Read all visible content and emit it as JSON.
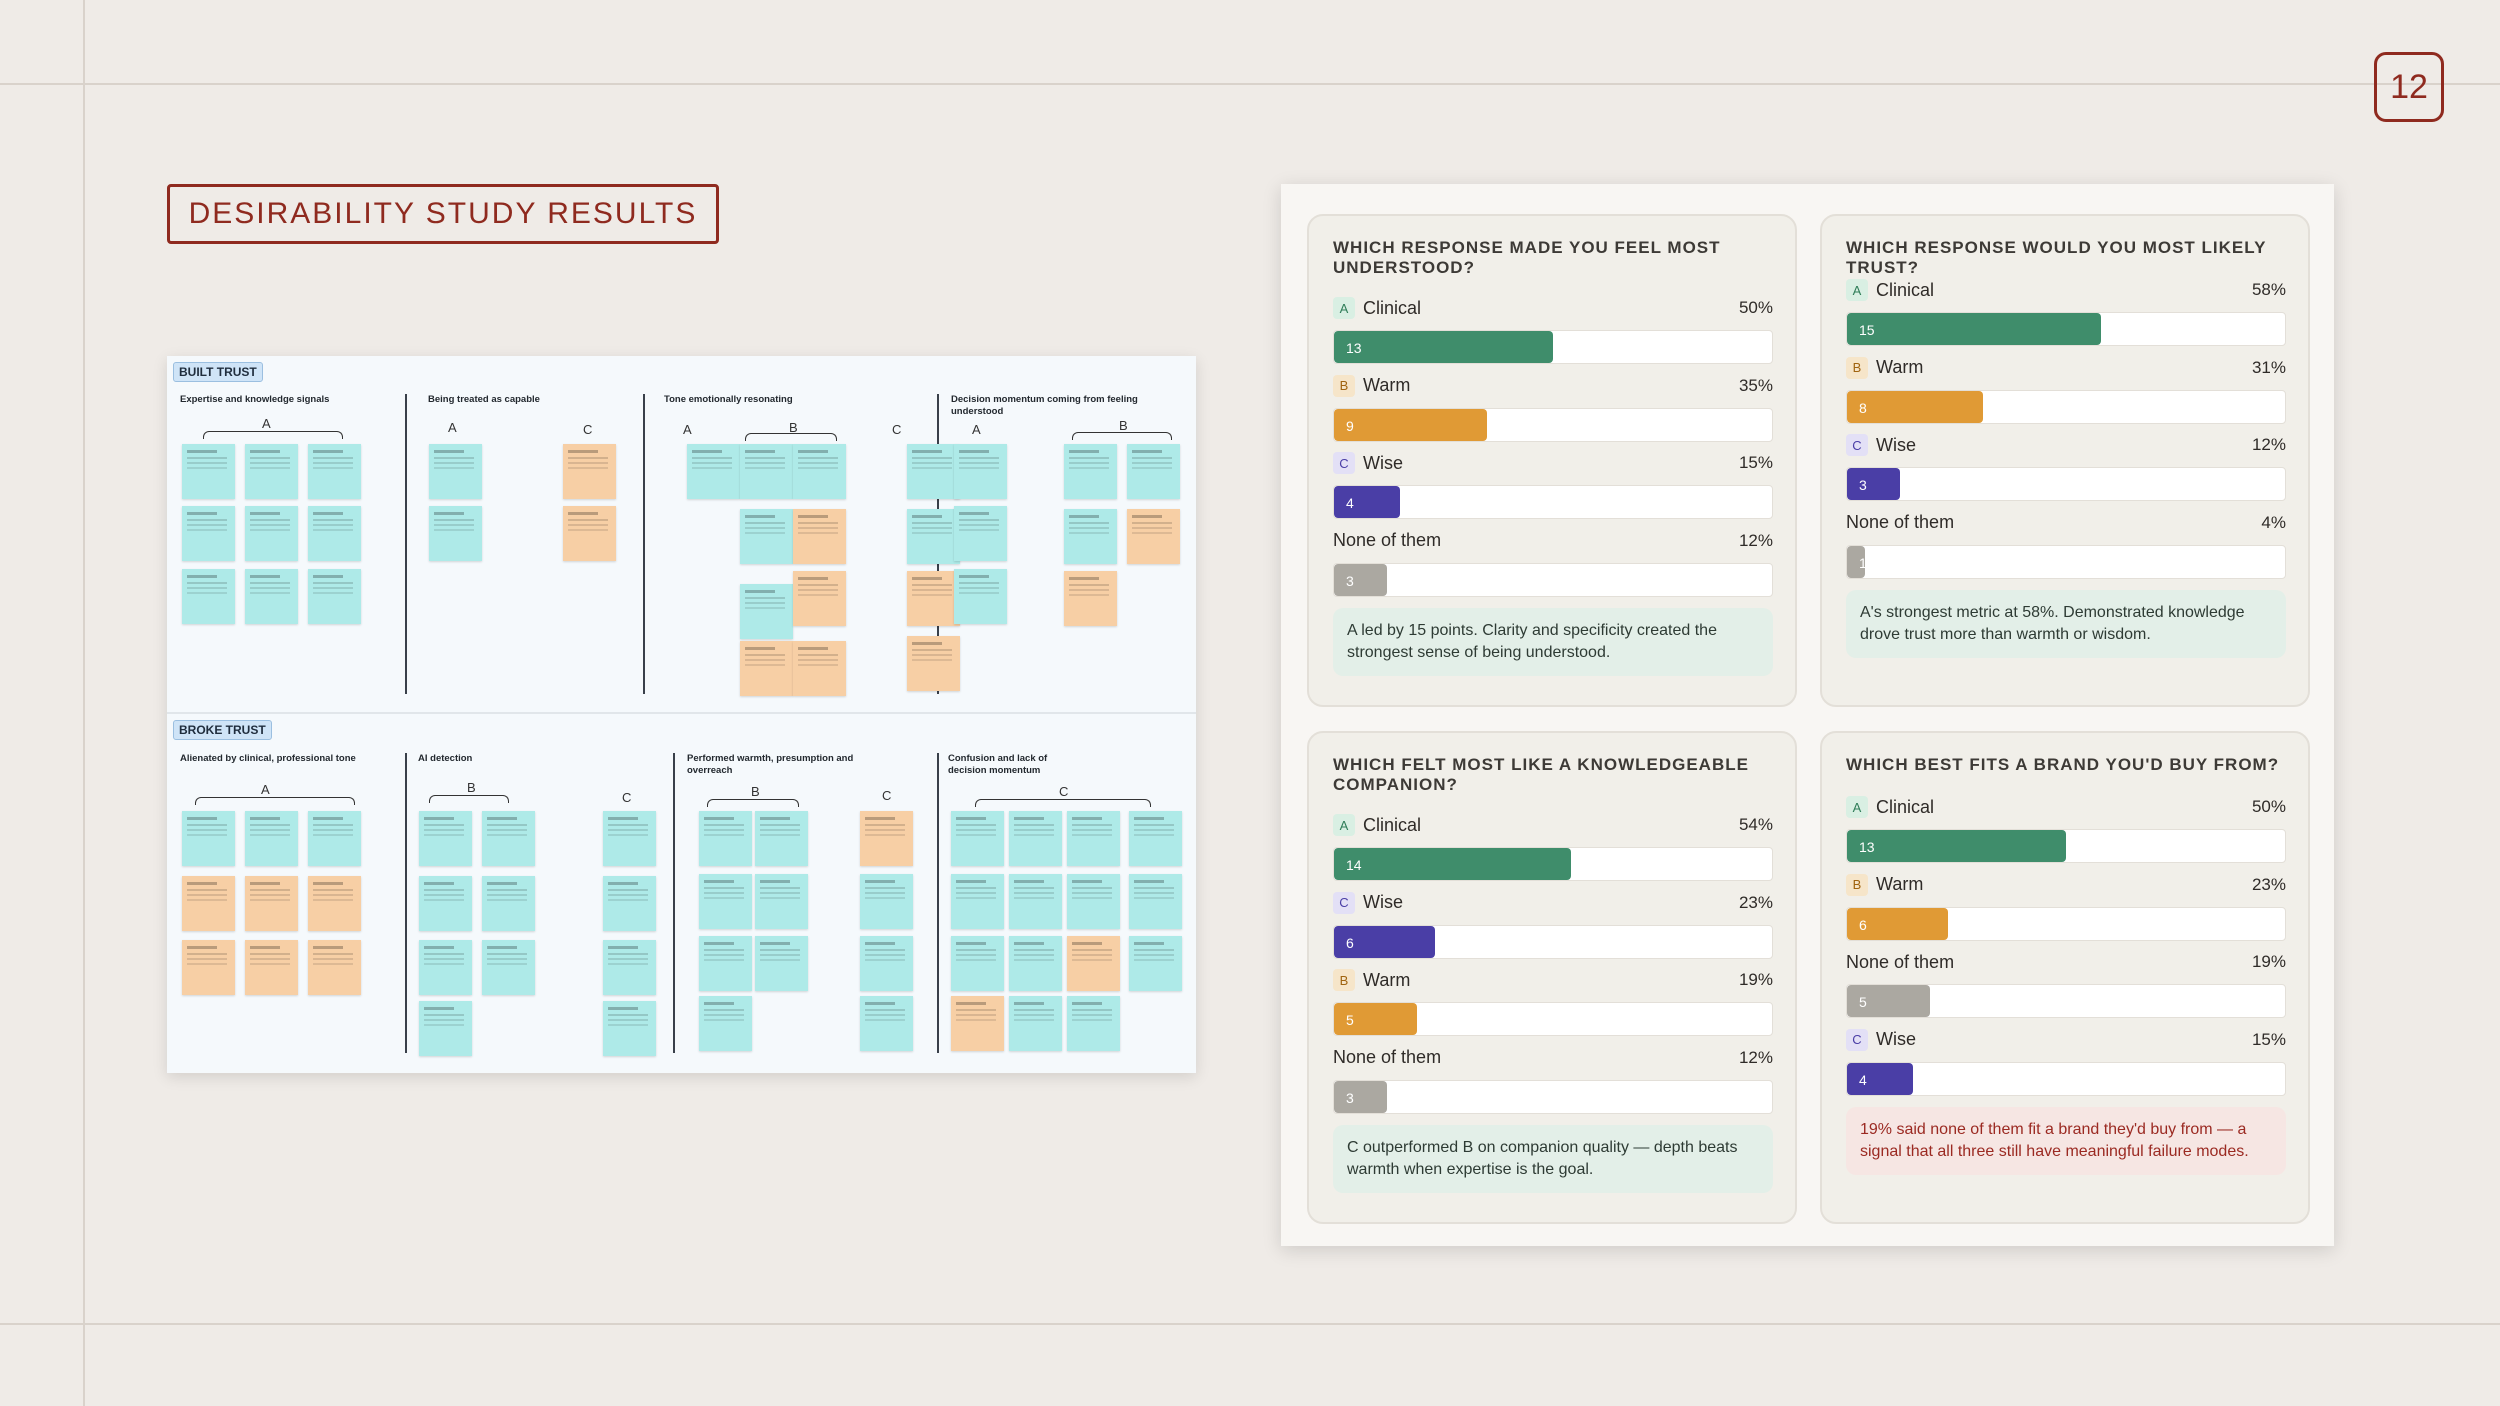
{
  "page_number": "12",
  "title": "DESIRABILITY STUDY RESULTS",
  "colors": {
    "clinical": "#3f8d6b",
    "warm": "#e09a35",
    "wise": "#4a3ea6",
    "none": "#aba8a1",
    "brand": "#8f2a1f"
  },
  "board": {
    "built_label": "BUILT TRUST",
    "broke_label": "BROKE TRUST",
    "built_groups": [
      "Expertise and knowledge signals",
      "Being treated as capable",
      "Tone emotionally resonating",
      "Decision momentum coming from feeling understood"
    ],
    "broke_groups": [
      "Alienated by clinical, professional tone",
      "AI detection",
      "Performed warmth, presumption and overreach",
      "Confusion and lack of decision momentum"
    ],
    "marks": {
      "a": "A",
      "b": "B",
      "c": "C"
    }
  },
  "chart_data": [
    {
      "type": "bar",
      "title": "WHICH RESPONSE MADE YOU FEEL MOST UNDERSTOOD?",
      "categories": [
        "Clinical",
        "Warm",
        "Wise",
        "None of them"
      ],
      "letters": [
        "A",
        "B",
        "C",
        ""
      ],
      "percent_labels": [
        "50%",
        "35%",
        "15%",
        "12%"
      ],
      "values": [
        13,
        9,
        4,
        3
      ],
      "percents": [
        50,
        35,
        15,
        12
      ],
      "colors": [
        "clinical",
        "warm",
        "wise",
        "none"
      ],
      "takeaway": "A led by 15 points. Clarity and specificity created the strongest sense of being understood.",
      "takeaway_tone": "green"
    },
    {
      "type": "bar",
      "title": "WHICH RESPONSE WOULD YOU MOST LIKELY TRUST?",
      "categories": [
        "Clinical",
        "Warm",
        "Wise",
        "None of them"
      ],
      "letters": [
        "A",
        "B",
        "C",
        ""
      ],
      "percent_labels": [
        "58%",
        "31%",
        "12%",
        "4%"
      ],
      "values": [
        15,
        8,
        3,
        1
      ],
      "percents": [
        58,
        31,
        12,
        4
      ],
      "colors": [
        "clinical",
        "warm",
        "wise",
        "none"
      ],
      "takeaway": "A's strongest metric at 58%. Demonstrated knowledge drove trust more than warmth or wisdom.",
      "takeaway_tone": "green"
    },
    {
      "type": "bar",
      "title": "WHICH FELT MOST LIKE A KNOWLEDGEABLE COMPANION?",
      "categories": [
        "Clinical",
        "Wise",
        "Warm",
        "None of them"
      ],
      "letters": [
        "A",
        "C",
        "B",
        ""
      ],
      "percent_labels": [
        "54%",
        "23%",
        "19%",
        "12%"
      ],
      "values": [
        14,
        6,
        5,
        3
      ],
      "percents": [
        54,
        23,
        19,
        12
      ],
      "colors": [
        "clinical",
        "wise",
        "warm",
        "none"
      ],
      "takeaway": "C outperformed B on companion quality — depth beats warmth when expertise is the goal.",
      "takeaway_tone": "green"
    },
    {
      "type": "bar",
      "title": "WHICH BEST FITS A BRAND YOU'D BUY FROM?",
      "categories": [
        "Clinical",
        "Warm",
        "None of them",
        "Wise"
      ],
      "letters": [
        "A",
        "B",
        "",
        "C"
      ],
      "percent_labels": [
        "50%",
        "23%",
        "19%",
        "15%"
      ],
      "values": [
        13,
        6,
        5,
        4
      ],
      "percents": [
        50,
        23,
        19,
        15
      ],
      "colors": [
        "clinical",
        "warm",
        "none",
        "wise"
      ],
      "takeaway": "19% said none of them fit a brand they'd buy from — a signal that all three still have meaningful failure modes.",
      "takeaway_tone": "red"
    }
  ]
}
